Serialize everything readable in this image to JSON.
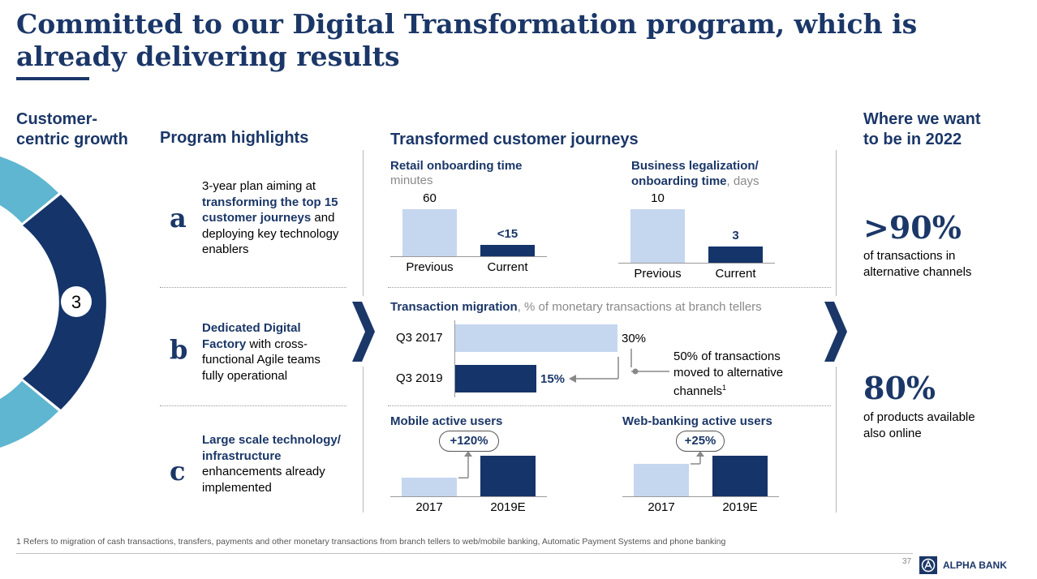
{
  "title": "Committed to our Digital Transformation program, which is already delivering results",
  "left": {
    "label_line1": "Customer-",
    "label_line2": "centric growth",
    "step_number": "3"
  },
  "program": {
    "heading": "Program highlights",
    "items": [
      {
        "letter": "a",
        "pre": "3-year plan aiming at",
        "bold": "transforming the top 15 customer journeys",
        "post": "and deploying key technology enablers"
      },
      {
        "letter": "b",
        "bold": "Dedicated Digital Factory",
        "post": "with cross-functional Agile teams fully operational"
      },
      {
        "letter": "c",
        "bold": "Large scale technology/ infrastructure",
        "post": "enhancements already implemented"
      }
    ]
  },
  "journeys": {
    "heading": "Transformed customer journeys",
    "retail": {
      "title": "Retail onboarding time",
      "unit": "minutes"
    },
    "business": {
      "title_line1": "Business legalization/",
      "title_line2": "onboarding time",
      "unit": ", days"
    },
    "migration": {
      "title": "Transaction migration",
      "subtitle": ", % of monetary transactions at branch tellers",
      "note": "50% of transactions moved to alternative channels",
      "note_sup": "1"
    },
    "mobile": {
      "title": "Mobile active users",
      "growth": "+120%"
    },
    "web": {
      "title": "Web-banking active users",
      "growth": "+25%"
    }
  },
  "chart_data": [
    {
      "type": "bar",
      "title": "Retail onboarding time",
      "ylabel": "minutes",
      "categories": [
        "Previous",
        "Current"
      ],
      "values": [
        60,
        15
      ],
      "value_labels": [
        "60",
        "<15"
      ]
    },
    {
      "type": "bar",
      "title": "Business legalization/ onboarding time",
      "ylabel": "days",
      "categories": [
        "Previous",
        "Current"
      ],
      "values": [
        10,
        3
      ],
      "value_labels": [
        "10",
        "3"
      ]
    },
    {
      "type": "bar",
      "orientation": "horizontal",
      "title": "Transaction migration",
      "subtitle": "% of monetary transactions at branch tellers",
      "categories": [
        "Q3 2017",
        "Q3 2019"
      ],
      "values": [
        30,
        15
      ],
      "value_labels": [
        "30%",
        "15%"
      ]
    },
    {
      "type": "bar",
      "title": "Mobile active users",
      "categories": [
        "2017",
        "2019E"
      ],
      "values": [
        1,
        2.2
      ],
      "annotation": "+120%"
    },
    {
      "type": "bar",
      "title": "Web-banking active users",
      "categories": [
        "2017",
        "2019E"
      ],
      "values": [
        1,
        1.25
      ],
      "annotation": "+25%"
    }
  ],
  "goals": {
    "heading_line1": "Where we want",
    "heading_line2": "to be in 2022",
    "items": [
      {
        "value": ">90%",
        "line1": "of transactions in",
        "line2": "alternative channels"
      },
      {
        "value": "80%",
        "line1": "of products available",
        "line2": "also online"
      }
    ]
  },
  "footnote": "1 Refers to migration of cash transactions, transfers, payments and other monetary transactions from branch tellers to web/mobile banking, Automatic Payment Systems and phone banking",
  "page_number": "37",
  "brand": "ALPHA BANK",
  "colors": {
    "navy": "#1b3768",
    "dark_bar": "#14346a",
    "light_bar": "#c5d6ef",
    "ring_light": "#5fb6d0"
  }
}
